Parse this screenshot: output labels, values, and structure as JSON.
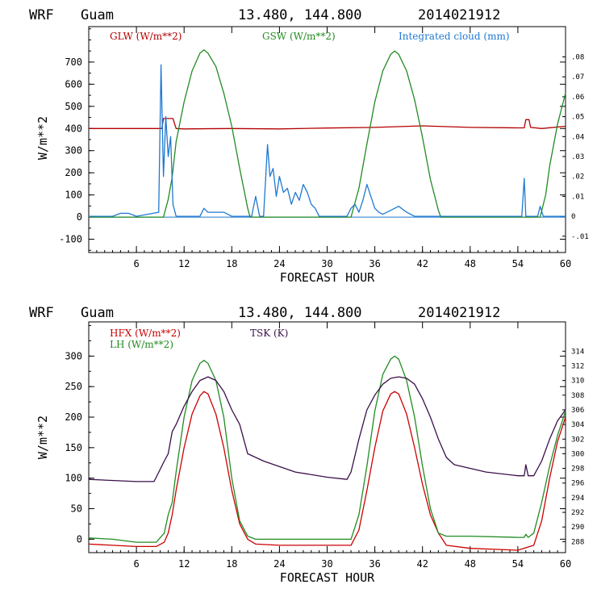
{
  "colors": {
    "glw": "#b30000",
    "gsw": "#228b22",
    "cloud": "#1f78d1",
    "hfx": "#cc0000",
    "lh": "#228b22",
    "tsk": "#3a0f4a"
  },
  "chart_data": [
    {
      "type": "line",
      "header": {
        "model": "WRF",
        "location": "Guam",
        "coords": "13.480, 144.800",
        "run": "2014021912"
      },
      "xlabel": "FORECAST HOUR",
      "ylabel": "W/m**2",
      "xlim": [
        0,
        60
      ],
      "ylim": [
        -160,
        860
      ],
      "xticks": [
        "6",
        "12",
        "18",
        "24",
        "30",
        "36",
        "42",
        "48",
        "54",
        "60"
      ],
      "yticks": [
        "-100",
        "0",
        "100",
        "200",
        "300",
        "400",
        "500",
        "600",
        "700"
      ],
      "y2lim": [
        -0.0182,
        0.0952
      ],
      "y2ticks": [
        "-.01",
        "0",
        ".01",
        ".02",
        ".03",
        ".04",
        ".05",
        ".06",
        ".07",
        ".08"
      ],
      "series": [
        {
          "name": "GLW (W/m**2)",
          "color_key": "glw",
          "axis": "left",
          "x": [
            0,
            6,
            9.2,
            9.4,
            10.6,
            11,
            12,
            18,
            24,
            30,
            36,
            42,
            48,
            54,
            54.8,
            55,
            55.4,
            55.6,
            57,
            60
          ],
          "y": [
            400,
            400,
            400,
            445,
            445,
            400,
            398,
            400,
            398,
            402,
            405,
            412,
            405,
            403,
            403,
            440,
            440,
            405,
            400,
            410
          ]
        },
        {
          "name": "GSW (W/m**2)",
          "color_key": "gsw",
          "axis": "left",
          "x": [
            0,
            9.4,
            10,
            10.5,
            11,
            12,
            13,
            14,
            14.5,
            15,
            16,
            17,
            18,
            19,
            20,
            20.3,
            33,
            34,
            35,
            36,
            37,
            38,
            38.5,
            39,
            40,
            41,
            42,
            43,
            44,
            44.3,
            56.8,
            57.5,
            58,
            59,
            60
          ],
          "y": [
            0,
            0,
            80,
            180,
            340,
            520,
            660,
            740,
            755,
            740,
            680,
            560,
            410,
            220,
            40,
            0,
            0,
            130,
            330,
            520,
            660,
            735,
            750,
            735,
            660,
            530,
            360,
            170,
            30,
            0,
            0,
            100,
            230,
            420,
            560
          ]
        },
        {
          "name": "Integrated cloud (mm)",
          "color_key": "cloud",
          "axis": "right",
          "x": [
            0,
            3,
            4,
            5,
            6,
            8.8,
            9.1,
            9.4,
            9.7,
            10,
            10.3,
            10.6,
            11,
            14,
            14.5,
            15,
            17,
            18,
            20.5,
            21,
            21.5,
            22,
            22.5,
            22.8,
            23.2,
            23.6,
            24,
            24.5,
            25,
            25.5,
            26,
            26.5,
            27,
            27.5,
            28,
            28.5,
            29,
            30,
            32.5,
            33,
            33.5,
            34,
            34.5,
            35,
            35.5,
            36,
            36.5,
            37,
            38,
            39,
            40,
            41,
            42,
            43,
            48,
            54.5,
            54.8,
            55,
            55.2,
            56,
            56.5,
            56.8,
            57.2,
            58,
            60
          ],
          "y": [
            0,
            0,
            0.0015,
            0.0015,
            0,
            0.002,
            0.076,
            0.02,
            0.05,
            0.03,
            0.04,
            0.006,
            0,
            0,
            0.004,
            0.002,
            0.002,
            0,
            0,
            0.01,
            0,
            0,
            0.036,
            0.02,
            0.024,
            0.01,
            0.02,
            0.012,
            0.014,
            0.006,
            0.012,
            0.008,
            0.016,
            0.012,
            0.006,
            0.004,
            0,
            0,
            0,
            0.004,
            0.006,
            0.002,
            0.008,
            0.016,
            0.01,
            0.004,
            0.002,
            0.001,
            0.003,
            0.005,
            0.002,
            0,
            0,
            0,
            0,
            0,
            0.019,
            0,
            0,
            0,
            0,
            0.005,
            0,
            0,
            0
          ]
        }
      ]
    },
    {
      "type": "line",
      "header": {
        "model": "WRF",
        "location": "Guam",
        "coords": "13.480, 144.800",
        "run": "2014021912"
      },
      "xlabel": "FORECAST HOUR",
      "ylabel": "W/m**2",
      "xlim": [
        0,
        60
      ],
      "ylim": [
        -22,
        356
      ],
      "xticks": [
        "6",
        "12",
        "18",
        "24",
        "30",
        "36",
        "42",
        "48",
        "54",
        "60"
      ],
      "yticks": [
        "0",
        "50",
        "100",
        "150",
        "200",
        "250",
        "300"
      ],
      "y2lim": [
        286.5,
        318
      ],
      "y2ticks": [
        "288",
        "290",
        "292",
        "294",
        "296",
        "298",
        "300",
        "302",
        "304",
        "306",
        "308",
        "310",
        "312",
        "314"
      ],
      "series": [
        {
          "name": "HFX (W/m**2)",
          "color_key": "hfx",
          "axis": "left",
          "x": [
            0,
            6,
            8.5,
            9.5,
            10,
            10.5,
            11,
            12,
            13,
            14,
            14.5,
            15,
            16,
            17,
            18,
            19,
            20,
            21,
            24,
            30,
            33,
            34,
            35,
            36,
            37,
            38,
            38.5,
            39,
            40,
            41,
            42,
            43,
            44,
            45,
            48,
            54,
            56,
            57,
            58,
            59,
            60
          ],
          "y": [
            -8,
            -12,
            -12,
            -5,
            10,
            40,
            80,
            150,
            205,
            235,
            242,
            238,
            205,
            150,
            80,
            25,
            0,
            -8,
            -10,
            -10,
            -10,
            15,
            80,
            150,
            210,
            238,
            242,
            238,
            205,
            150,
            90,
            40,
            10,
            -10,
            -15,
            -18,
            -10,
            30,
            100,
            160,
            200
          ]
        },
        {
          "name": "LH (W/m**2)",
          "color_key": "lh",
          "axis": "left",
          "x": [
            0,
            3,
            6,
            8.5,
            9.5,
            10,
            10.5,
            11,
            12,
            13,
            14,
            14.5,
            15,
            16,
            17,
            18,
            19,
            20,
            21,
            24,
            30,
            33,
            34,
            35,
            36,
            37,
            38,
            38.5,
            39,
            40,
            41,
            42,
            43,
            44,
            45,
            48,
            54,
            54.8,
            55,
            55.3,
            56,
            57,
            58,
            59,
            60
          ],
          "y": [
            2,
            0,
            -5,
            -5,
            10,
            40,
            60,
            110,
            200,
            260,
            288,
            293,
            288,
            260,
            200,
            100,
            30,
            5,
            0,
            0,
            0,
            0,
            40,
            120,
            210,
            270,
            295,
            300,
            295,
            260,
            200,
            120,
            50,
            10,
            5,
            5,
            3,
            3,
            8,
            3,
            10,
            60,
            120,
            170,
            210
          ]
        },
        {
          "name": "TSK (K)",
          "color_key": "tsk",
          "axis": "right",
          "x": [
            0,
            6,
            8.2,
            8.5,
            9.5,
            10,
            10.5,
            11,
            12,
            13,
            14,
            15,
            16,
            17,
            18,
            19,
            20,
            22,
            26,
            30,
            32.5,
            33,
            34,
            35,
            36,
            37,
            38,
            39,
            40,
            41,
            42,
            43,
            44,
            45,
            46,
            50,
            54,
            54.8,
            55,
            55.3,
            56,
            57,
            58,
            59,
            60
          ],
          "y": [
            296.5,
            296.2,
            296.2,
            296.8,
            299,
            300,
            303,
            304,
            306.5,
            308.5,
            310,
            310.5,
            310,
            308.5,
            306,
            304,
            300,
            299,
            297.5,
            296.8,
            296.5,
            297.5,
            302,
            306,
            308,
            309.5,
            310.3,
            310.5,
            310.3,
            309.5,
            307.5,
            305,
            302,
            299.5,
            298.5,
            297.5,
            297,
            297,
            298.5,
            297,
            297,
            299,
            302,
            304.5,
            306
          ]
        }
      ]
    }
  ]
}
